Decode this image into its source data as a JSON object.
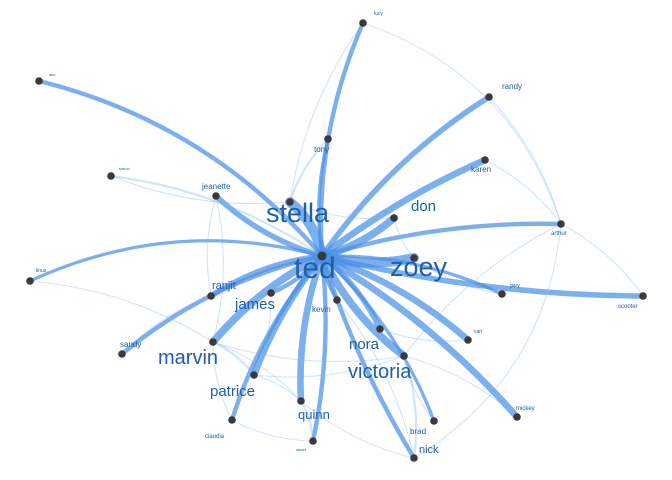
{
  "graph": {
    "center": "ted",
    "nodes": [
      {
        "id": "ted",
        "label": "ted"
      },
      {
        "id": "zoey",
        "label": "zoey"
      },
      {
        "id": "stella",
        "label": "stella"
      },
      {
        "id": "don",
        "label": "don"
      },
      {
        "id": "lucy",
        "label": "lucy"
      },
      {
        "id": "randy",
        "label": "randy"
      },
      {
        "id": "ako",
        "label": "ako"
      },
      {
        "id": "tony",
        "label": "tony"
      },
      {
        "id": "karen",
        "label": "karen"
      },
      {
        "id": "simon",
        "label": "simon"
      },
      {
        "id": "jeanette",
        "label": "jeanette"
      },
      {
        "id": "arthur",
        "label": "arthur"
      },
      {
        "id": "linus",
        "label": "linus"
      },
      {
        "id": "ranjit",
        "label": "ranjit"
      },
      {
        "id": "gary",
        "label": "gary"
      },
      {
        "id": "james",
        "label": "james"
      },
      {
        "id": "kevin",
        "label": "kevin"
      },
      {
        "id": "scooter",
        "label": "scooter"
      },
      {
        "id": "carl",
        "label": "carl"
      },
      {
        "id": "sandy",
        "label": "sandy"
      },
      {
        "id": "marvin",
        "label": "marvin"
      },
      {
        "id": "nora",
        "label": "nora"
      },
      {
        "id": "victoria",
        "label": "victoria"
      },
      {
        "id": "patrice",
        "label": "patrice"
      },
      {
        "id": "mickey",
        "label": "mickey"
      },
      {
        "id": "quinn",
        "label": "quinn"
      },
      {
        "id": "brad",
        "label": "brad"
      },
      {
        "id": "claudia",
        "label": "claudia"
      },
      {
        "id": "stuart",
        "label": "stuart"
      },
      {
        "id": "nick",
        "label": "nick"
      }
    ],
    "edges": [
      {
        "from": "ted",
        "to": "zoey",
        "weight": 9
      },
      {
        "from": "ted",
        "to": "stella",
        "weight": 9
      },
      {
        "from": "ted",
        "to": "don",
        "weight": 7
      },
      {
        "from": "ted",
        "to": "karen",
        "weight": 6
      },
      {
        "from": "ted",
        "to": "randy",
        "weight": 5
      },
      {
        "from": "ted",
        "to": "lucy",
        "weight": 4
      },
      {
        "from": "ted",
        "to": "ako",
        "weight": 4
      },
      {
        "from": "ted",
        "to": "tony",
        "weight": 3
      },
      {
        "from": "ted",
        "to": "jeanette",
        "weight": 5
      },
      {
        "from": "ted",
        "to": "linus",
        "weight": 3
      },
      {
        "from": "ted",
        "to": "ranjit",
        "weight": 5
      },
      {
        "from": "ted",
        "to": "james",
        "weight": 4
      },
      {
        "from": "ted",
        "to": "marvin",
        "weight": 7
      },
      {
        "from": "ted",
        "to": "sandy",
        "weight": 4
      },
      {
        "from": "ted",
        "to": "patrice",
        "weight": 6
      },
      {
        "from": "ted",
        "to": "quinn",
        "weight": 6
      },
      {
        "from": "ted",
        "to": "claudia",
        "weight": 4
      },
      {
        "from": "ted",
        "to": "stuart",
        "weight": 4
      },
      {
        "from": "ted",
        "to": "nick",
        "weight": 4
      },
      {
        "from": "ted",
        "to": "brad",
        "weight": 3
      },
      {
        "from": "ted",
        "to": "victoria",
        "weight": 7
      },
      {
        "from": "ted",
        "to": "nora",
        "weight": 5
      },
      {
        "from": "ted",
        "to": "mickey",
        "weight": 6
      },
      {
        "from": "ted",
        "to": "carl",
        "weight": 6
      },
      {
        "from": "ted",
        "to": "scooter",
        "weight": 5
      },
      {
        "from": "ted",
        "to": "gary",
        "weight": 3
      },
      {
        "from": "ted",
        "to": "kevin",
        "weight": 3
      },
      {
        "from": "ted",
        "to": "arthur",
        "weight": 4
      },
      {
        "from": "ted",
        "to": "simon",
        "weight": 2
      },
      {
        "from": "randy",
        "to": "arthur",
        "weight": 1
      },
      {
        "from": "lucy",
        "to": "arthur",
        "weight": 1
      },
      {
        "from": "karen",
        "to": "arthur",
        "weight": 1
      },
      {
        "from": "arthur",
        "to": "scooter",
        "weight": 1
      },
      {
        "from": "arthur",
        "to": "nick",
        "weight": 1
      },
      {
        "from": "arthur",
        "to": "victoria",
        "weight": 1
      },
      {
        "from": "stella",
        "to": "tony",
        "weight": 2
      },
      {
        "from": "stella",
        "to": "don",
        "weight": 1
      },
      {
        "from": "stella",
        "to": "lucy",
        "weight": 1
      },
      {
        "from": "jeanette",
        "to": "ranjit",
        "weight": 1
      },
      {
        "from": "jeanette",
        "to": "marvin",
        "weight": 1
      },
      {
        "from": "simon",
        "to": "stella",
        "weight": 1
      },
      {
        "from": "linus",
        "to": "marvin",
        "weight": 1
      },
      {
        "from": "ranjit",
        "to": "sandy",
        "weight": 1
      },
      {
        "from": "marvin",
        "to": "patrice",
        "weight": 2
      },
      {
        "from": "marvin",
        "to": "claudia",
        "weight": 1
      },
      {
        "from": "marvin",
        "to": "quinn",
        "weight": 1
      },
      {
        "from": "marvin",
        "to": "victoria",
        "weight": 1
      },
      {
        "from": "patrice",
        "to": "quinn",
        "weight": 1
      },
      {
        "from": "patrice",
        "to": "victoria",
        "weight": 1
      },
      {
        "from": "quinn",
        "to": "stuart",
        "weight": 2
      },
      {
        "from": "quinn",
        "to": "nick",
        "weight": 1
      },
      {
        "from": "victoria",
        "to": "nick",
        "weight": 2
      },
      {
        "from": "victoria",
        "to": "brad",
        "weight": 1
      },
      {
        "from": "victoria",
        "to": "mickey",
        "weight": 1
      },
      {
        "from": "nora",
        "to": "carl",
        "weight": 1
      },
      {
        "from": "kevin",
        "to": "nick",
        "weight": 1
      },
      {
        "from": "zoey",
        "to": "gary",
        "weight": 1
      },
      {
        "from": "zoey",
        "to": "don",
        "weight": 1
      },
      {
        "from": "claudia",
        "to": "stuart",
        "weight": 1
      },
      {
        "from": "james",
        "to": "patrice",
        "weight": 1
      }
    ]
  }
}
